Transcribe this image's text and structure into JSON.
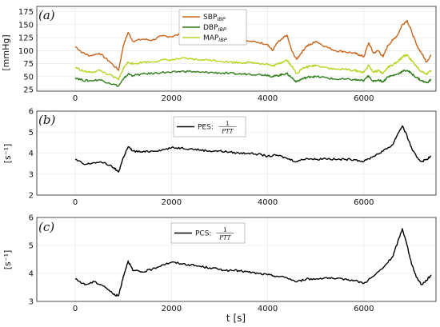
{
  "chart_data": [
    {
      "type": "line",
      "panel_tag": "(a)",
      "ylabel": "[mmHg]",
      "xlim": [
        -800,
        7500
      ],
      "ylim": [
        22,
        185
      ],
      "xticks": [
        0,
        2000,
        4000,
        6000
      ],
      "yticks": [
        25,
        50,
        75,
        100,
        125,
        150,
        175
      ],
      "legend_position": "top-center",
      "series": [
        {
          "name": "SBP",
          "name_subscript": "IBP",
          "color": "#c8641c",
          "x": [
            0,
            150,
            300,
            500,
            700,
            900,
            1000,
            1100,
            1200,
            1400,
            1600,
            1800,
            2000,
            2200,
            2400,
            2600,
            2800,
            3000,
            3200,
            3400,
            3600,
            3800,
            4000,
            4100,
            4200,
            4300,
            4400,
            4500,
            4600,
            4700,
            4800,
            4900,
            5000,
            5200,
            5400,
            5600,
            5800,
            5900,
            6000,
            6100,
            6200,
            6300,
            6400,
            6500,
            6600,
            6700,
            6800,
            6900,
            7000,
            7100,
            7200,
            7300,
            7400
          ],
          "values": [
            108,
            96,
            90,
            95,
            80,
            62,
            110,
            135,
            118,
            122,
            120,
            128,
            127,
            132,
            130,
            125,
            125,
            124,
            120,
            118,
            118,
            116,
            112,
            100,
            115,
            122,
            130,
            100,
            83,
            96,
            108,
            112,
            118,
            108,
            100,
            98,
            95,
            92,
            88,
            115,
            95,
            100,
            88,
            110,
            120,
            130,
            150,
            158,
            135,
            110,
            95,
            78,
            92
          ]
        },
        {
          "name": "DBP",
          "name_subscript": "IBP",
          "color": "#2e7d1a",
          "x": [
            0,
            150,
            300,
            500,
            700,
            900,
            1000,
            1100,
            1200,
            1400,
            1600,
            1800,
            2000,
            2200,
            2400,
            2600,
            2800,
            3000,
            3200,
            3400,
            3600,
            3800,
            4000,
            4100,
            4200,
            4300,
            4400,
            4500,
            4600,
            4700,
            4800,
            4900,
            5000,
            5200,
            5400,
            5600,
            5800,
            5900,
            6000,
            6100,
            6200,
            6300,
            6400,
            6500,
            6600,
            6700,
            6800,
            6900,
            7000,
            7100,
            7200,
            7300,
            7400
          ],
          "values": [
            48,
            43,
            42,
            44,
            38,
            32,
            45,
            55,
            52,
            55,
            56,
            58,
            58,
            60,
            60,
            58,
            58,
            57,
            56,
            55,
            55,
            54,
            53,
            50,
            52,
            54,
            56,
            48,
            40,
            45,
            48,
            50,
            50,
            48,
            45,
            45,
            44,
            43,
            42,
            52,
            40,
            44,
            40,
            50,
            52,
            55,
            60,
            62,
            55,
            48,
            42,
            38,
            44
          ]
        },
        {
          "name": "MAP",
          "name_subscript": "IBP",
          "color": "#b9d21e",
          "x": [
            0,
            150,
            300,
            500,
            700,
            900,
            1000,
            1100,
            1200,
            1400,
            1600,
            1800,
            2000,
            2200,
            2400,
            2600,
            2800,
            3000,
            3200,
            3400,
            3600,
            3800,
            4000,
            4100,
            4200,
            4300,
            4400,
            4500,
            4600,
            4700,
            4800,
            4900,
            5000,
            5200,
            5400,
            5600,
            5800,
            5900,
            6000,
            6100,
            6200,
            6300,
            6400,
            6500,
            6600,
            6700,
            6800,
            6900,
            7000,
            7100,
            7200,
            7300,
            7400
          ],
          "values": [
            68,
            61,
            58,
            62,
            54,
            44,
            66,
            78,
            74,
            78,
            78,
            82,
            82,
            85,
            84,
            82,
            82,
            80,
            78,
            77,
            77,
            76,
            74,
            70,
            74,
            78,
            82,
            70,
            56,
            64,
            68,
            70,
            72,
            68,
            64,
            64,
            62,
            60,
            58,
            72,
            58,
            62,
            56,
            68,
            72,
            78,
            88,
            92,
            80,
            68,
            60,
            54,
            62
          ]
        }
      ]
    },
    {
      "type": "line",
      "panel_tag": "(b)",
      "ylabel": "[s⁻¹]",
      "xlim": [
        -800,
        7500
      ],
      "ylim": [
        2,
        6
      ],
      "xticks": [
        0,
        2000,
        4000,
        6000
      ],
      "yticks": [
        2,
        3,
        4,
        5,
        6
      ],
      "legend_position": "top-center",
      "series": [
        {
          "name": "PES:",
          "fraction_numerator": "1",
          "fraction_denominator": "PTT",
          "color": "#000000",
          "x": [
            0,
            200,
            400,
            600,
            800,
            900,
            1000,
            1100,
            1200,
            1400,
            1600,
            1800,
            2000,
            2200,
            2400,
            2600,
            2800,
            3000,
            3200,
            3400,
            3600,
            3800,
            4000,
            4200,
            4400,
            4600,
            4800,
            5000,
            5200,
            5400,
            5600,
            5800,
            6000,
            6200,
            6400,
            6600,
            6700,
            6800,
            6900,
            7000,
            7100,
            7200,
            7300,
            7400
          ],
          "values": [
            3.7,
            3.45,
            3.55,
            3.55,
            3.3,
            3.1,
            3.8,
            4.3,
            4.1,
            4.05,
            4.1,
            4.15,
            4.25,
            4.25,
            4.2,
            4.15,
            4.1,
            4.1,
            4.05,
            4.0,
            4.0,
            3.95,
            3.85,
            3.9,
            3.75,
            3.6,
            3.75,
            3.7,
            3.75,
            3.7,
            3.7,
            3.7,
            3.6,
            3.85,
            4.1,
            4.4,
            4.9,
            5.3,
            4.8,
            4.2,
            3.8,
            3.6,
            3.7,
            3.85
          ]
        }
      ]
    },
    {
      "type": "line",
      "panel_tag": "(c)",
      "ylabel": "[s⁻¹]",
      "xlabel": "t [s]",
      "xlim": [
        -800,
        7500
      ],
      "ylim": [
        3,
        6
      ],
      "xticks": [
        0,
        2000,
        4000,
        6000
      ],
      "yticks": [
        3,
        4,
        5,
        6
      ],
      "legend_position": "top-center",
      "series": [
        {
          "name": "PCS:",
          "fraction_numerator": "1",
          "fraction_denominator": "PTT",
          "color": "#000000",
          "x": [
            0,
            200,
            400,
            600,
            800,
            900,
            1000,
            1100,
            1200,
            1400,
            1600,
            1800,
            2000,
            2200,
            2400,
            2600,
            2800,
            3000,
            3200,
            3400,
            3600,
            3800,
            4000,
            4200,
            4400,
            4600,
            4800,
            5000,
            5200,
            5400,
            5600,
            5800,
            6000,
            6200,
            6400,
            6600,
            6700,
            6800,
            6900,
            7000,
            7100,
            7200,
            7300,
            7400
          ],
          "values": [
            3.8,
            3.6,
            3.7,
            3.55,
            3.25,
            3.2,
            3.9,
            4.45,
            4.1,
            4.05,
            4.15,
            4.3,
            4.4,
            4.35,
            4.3,
            4.25,
            4.2,
            4.15,
            4.1,
            4.1,
            4.05,
            4.0,
            3.95,
            3.9,
            3.85,
            3.7,
            3.8,
            3.8,
            3.85,
            3.8,
            3.8,
            3.75,
            3.65,
            3.9,
            4.2,
            4.6,
            5.1,
            5.6,
            5.0,
            4.3,
            3.85,
            3.6,
            3.75,
            3.95
          ]
        }
      ]
    }
  ]
}
